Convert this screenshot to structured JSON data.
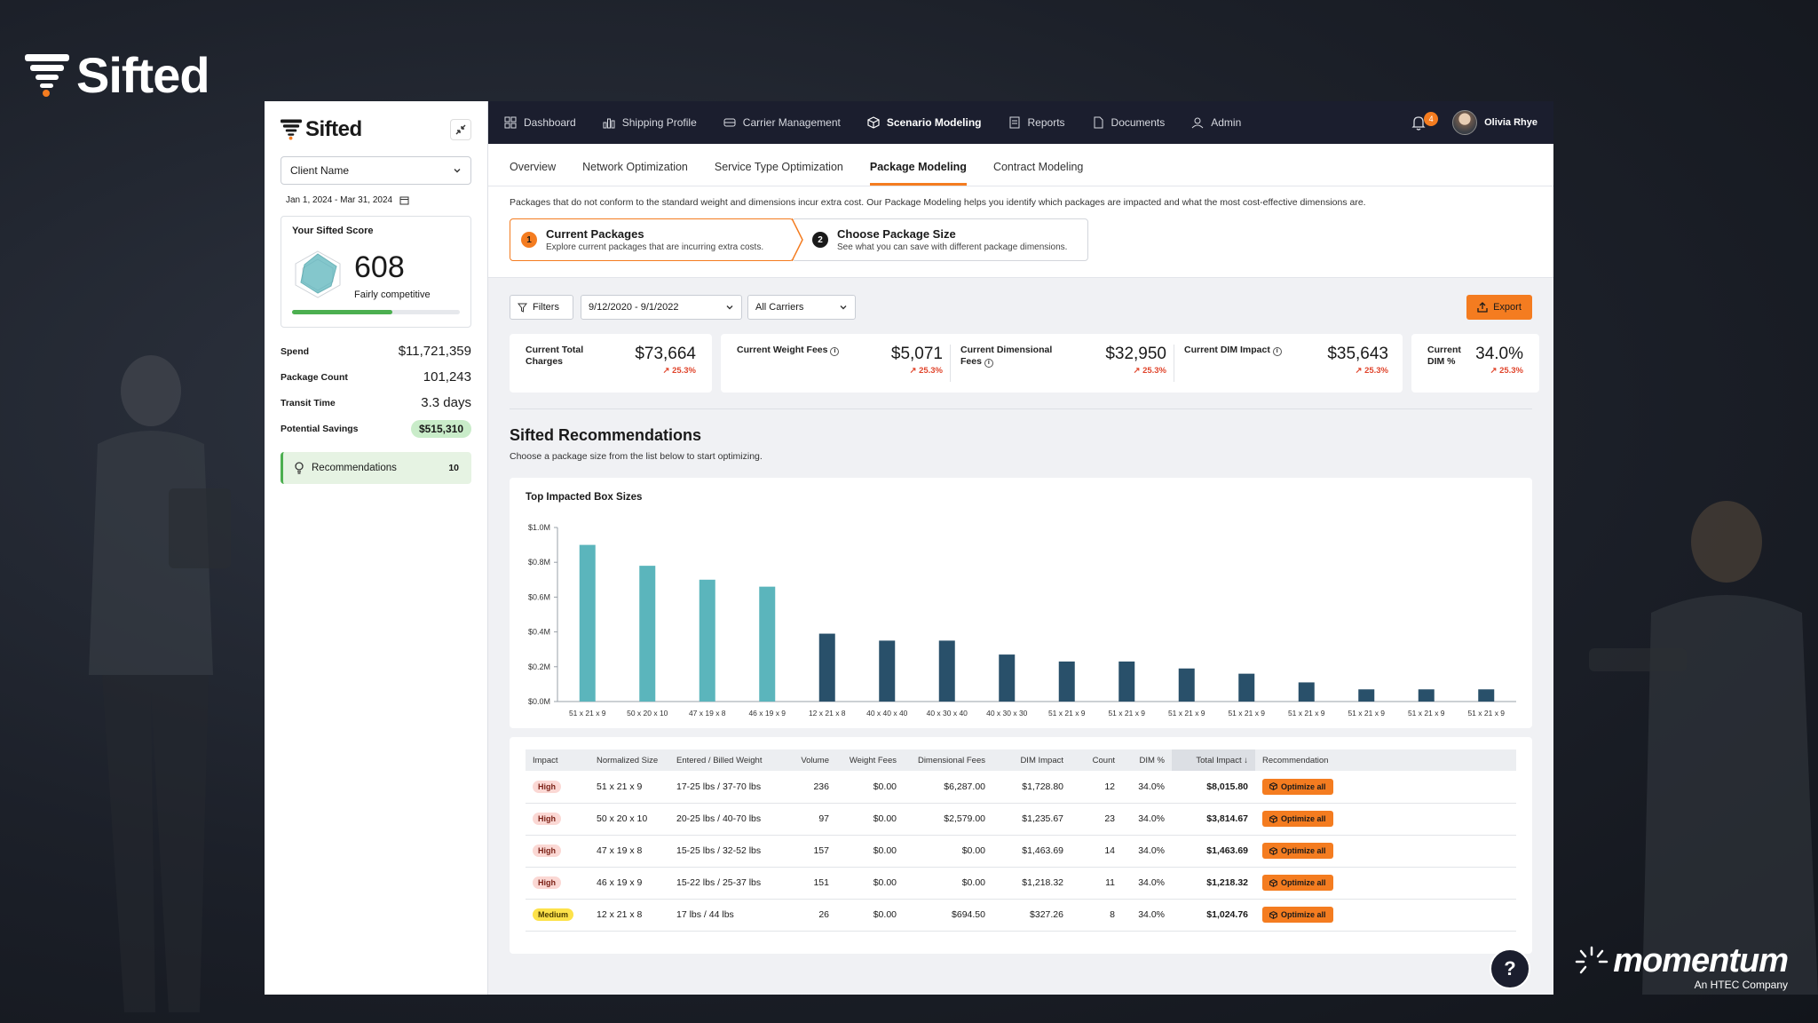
{
  "brand": {
    "name": "Sifted",
    "partner_name": "momentum",
    "partner_sub": "An HTEC Company"
  },
  "sidebar": {
    "logo": "Sifted",
    "client_select": "Client Name",
    "date_range": "Jan 1, 2024 - Mar 31, 2024",
    "score_title": "Your Sifted Score",
    "score_value": "608",
    "score_label": "Fairly competitive",
    "score_fraction": 0.6,
    "stats": [
      {
        "label": "Spend",
        "value": "$11,721,359"
      },
      {
        "label": "Package Count",
        "value": "101,243"
      },
      {
        "label": "Transit Time",
        "value": "3.3 days"
      },
      {
        "label": "Potential Savings",
        "value": "$515,310"
      }
    ],
    "recommendations_label": "Recommendations",
    "recommendations_count": "10"
  },
  "topnav": {
    "items": [
      {
        "label": "Dashboard",
        "icon": "grid-icon"
      },
      {
        "label": "Shipping Profile",
        "icon": "bar-chart-icon"
      },
      {
        "label": "Carrier Management",
        "icon": "truck-icon"
      },
      {
        "label": "Scenario Modeling",
        "icon": "cube-icon",
        "active": true
      },
      {
        "label": "Reports",
        "icon": "report-icon"
      },
      {
        "label": "Documents",
        "icon": "document-icon"
      },
      {
        "label": "Admin",
        "icon": "user-icon"
      }
    ],
    "notification_count": "4",
    "user_name": "Olivia Rhye"
  },
  "subnav": {
    "tabs": [
      "Overview",
      "Network Optimization",
      "Service Type Optimization",
      "Package Modeling",
      "Contract Modeling"
    ],
    "active": "Package Modeling"
  },
  "intro": {
    "text": "Packages that do not conform to the standard weight and dimensions incur extra cost. Our Package Modeling helps you identify which packages are impacted and what the most cost-effective dimensions are.",
    "steps": [
      {
        "num": "1",
        "title": "Current Packages",
        "desc": "Explore current packages that are incurring extra costs."
      },
      {
        "num": "2",
        "title": "Choose Package Size",
        "desc": "See what you can save with different package dimensions."
      }
    ]
  },
  "filters": {
    "filters_label": "Filters",
    "date": "9/12/2020 - 9/1/2022",
    "carriers": "All Carriers",
    "export_label": "Export"
  },
  "metrics": [
    {
      "label": "Current Total Charges",
      "value": "$73,664",
      "delta": "25.3%"
    },
    {
      "label": "Current Weight Fees",
      "value": "$5,071",
      "delta": "25.3%",
      "info": true
    },
    {
      "label": "Current Dimensional Fees",
      "value": "$32,950",
      "delta": "25.3%",
      "info": true
    },
    {
      "label": "Current DIM Impact",
      "value": "$35,643",
      "delta": "25.3%",
      "info": true
    },
    {
      "label": "Current DIM %",
      "value": "34.0%",
      "delta": "25.3%"
    }
  ],
  "recommendations": {
    "title": "Sifted Recommendations",
    "subtitle": "Choose a package size from the list below to start optimizing."
  },
  "chart_data": {
    "type": "bar",
    "title": "Top Impacted Box Sizes",
    "categories": [
      "51 x 21 x 9",
      "50 x 20 x 10",
      "47 x 19 x 8",
      "46 x 19 x 9",
      "12 x 21 x 8",
      "40 x 40 x 40",
      "40 x 30 x 40",
      "40 x 30 x 30",
      "51 x 21 x 9",
      "51 x 21 x 9",
      "51 x 21 x 9",
      "51 x 21 x 9",
      "51 x 21 x 9",
      "51 x 21 x 9",
      "51 x 21 x 9",
      "51 x 21 x 9"
    ],
    "values": [
      0.9,
      0.78,
      0.7,
      0.66,
      0.39,
      0.35,
      0.35,
      0.27,
      0.23,
      0.23,
      0.19,
      0.16,
      0.11,
      0.07,
      0.07,
      0.07
    ],
    "yticks": [
      "$0.0M",
      "$0.2M",
      "$0.4M",
      "$0.6M",
      "$0.8M",
      "$1.0M"
    ],
    "ylim": [
      0,
      1.0
    ],
    "colors": {
      "high": "#5bb5bc",
      "other": "#29506a"
    },
    "highlighted_count": 4
  },
  "table": {
    "headers": [
      "Impact",
      "Normalized Size",
      "Entered / Billed Weight",
      "Volume",
      "Weight Fees",
      "Dimensional Fees",
      "DIM Impact",
      "Count",
      "DIM %",
      "Total Impact",
      "Recommendation"
    ],
    "rows": [
      {
        "impact": "High",
        "size": "51 x 21 x 9",
        "weight": "17-25 lbs / 37-70 lbs",
        "volume": "236",
        "wfees": "$0.00",
        "dfees": "$6,287.00",
        "dimimpact": "$1,728.80",
        "count": "12",
        "dimpct": "34.0%",
        "total": "$8,015.80",
        "action": "Optimize all"
      },
      {
        "impact": "High",
        "size": "50 x 20 x 10",
        "weight": "20-25 lbs / 40-70 lbs",
        "volume": "97",
        "wfees": "$0.00",
        "dfees": "$2,579.00",
        "dimimpact": "$1,235.67",
        "count": "23",
        "dimpct": "34.0%",
        "total": "$3,814.67",
        "action": "Optimize all"
      },
      {
        "impact": "High",
        "size": "47 x 19 x 8",
        "weight": "15-25 lbs / 32-52 lbs",
        "volume": "157",
        "wfees": "$0.00",
        "dfees": "$0.00",
        "dimimpact": "$1,463.69",
        "count": "14",
        "dimpct": "34.0%",
        "total": "$1,463.69",
        "action": "Optimize all"
      },
      {
        "impact": "High",
        "size": "46 x 19 x 9",
        "weight": "15-22 lbs / 25-37 lbs",
        "volume": "151",
        "wfees": "$0.00",
        "dfees": "$0.00",
        "dimimpact": "$1,218.32",
        "count": "11",
        "dimpct": "34.0%",
        "total": "$1,218.32",
        "action": "Optimize all"
      },
      {
        "impact": "Medium",
        "size": "12 x 21 x 8",
        "weight": "17 lbs / 44 lbs",
        "volume": "26",
        "wfees": "$0.00",
        "dfees": "$694.50",
        "dimimpact": "$327.26",
        "count": "8",
        "dimpct": "34.0%",
        "total": "$1,024.76",
        "action": "Optimize all"
      }
    ]
  },
  "help_label": "?"
}
